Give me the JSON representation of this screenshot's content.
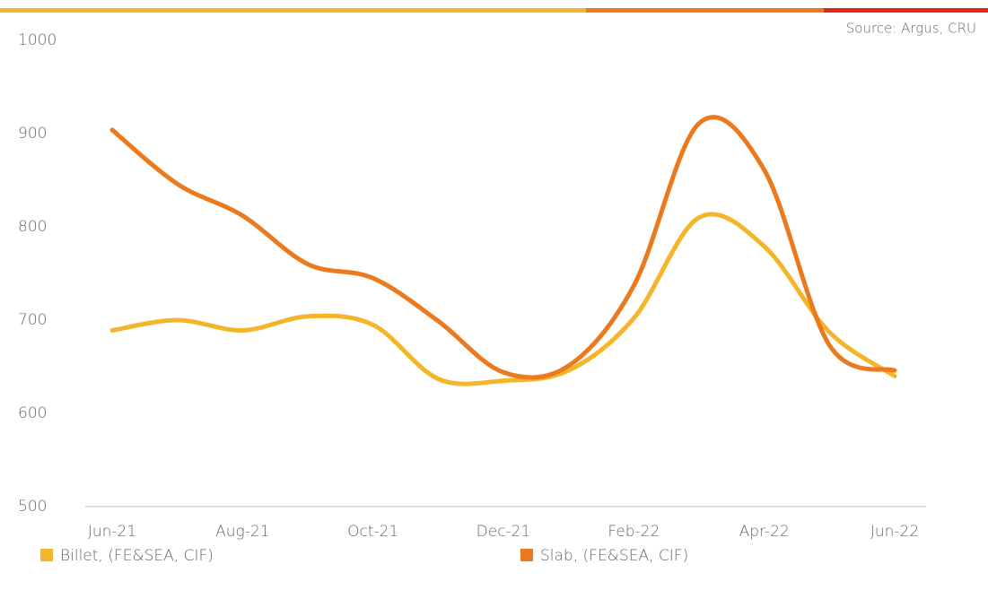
{
  "chart_data": {
    "type": "line",
    "source": "Source: Argus, CRU",
    "categories": [
      "Jun-21",
      null,
      "Aug-21",
      null,
      "Oct-21",
      null,
      "Dec-21",
      null,
      "Feb-22",
      null,
      "Apr-22",
      null,
      "Jun-22"
    ],
    "series": [
      {
        "name": "Billet, (FE&SEA, CIF)",
        "color": "#f5b52a",
        "values": [
          689,
          700,
          689,
          704,
          695,
          637,
          635,
          646,
          702,
          810,
          779,
          687,
          640
        ]
      },
      {
        "name": "Slab, (FE&SEA, CIF)",
        "color": "#eb7a1e",
        "values": [
          904,
          846,
          812,
          760,
          745,
          699,
          644,
          651,
          737,
          911,
          861,
          673,
          646
        ]
      }
    ],
    "ylim": [
      500,
      1000
    ],
    "yticks": [
      500,
      600,
      700,
      800,
      900,
      1000
    ],
    "grid": false
  }
}
